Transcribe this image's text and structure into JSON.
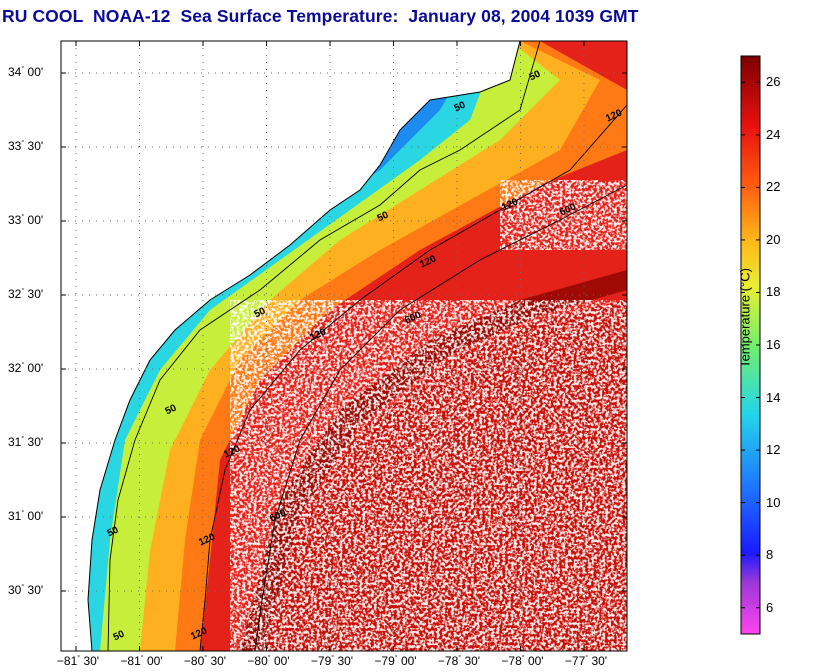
{
  "title": "RU COOL  NOAA-12  Sea Surface Temperature:  January 08, 2004 1039 GMT",
  "map": {
    "lat_labels": [
      {
        "deg": "34",
        "min": "00'",
        "lat": 34.0
      },
      {
        "deg": "33",
        "min": "30'",
        "lat": 33.5
      },
      {
        "deg": "33",
        "min": "00'",
        "lat": 33.0
      },
      {
        "deg": "32",
        "min": "30'",
        "lat": 32.5
      },
      {
        "deg": "32",
        "min": "00'",
        "lat": 32.0
      },
      {
        "deg": "31",
        "min": "30'",
        "lat": 31.5
      },
      {
        "deg": "31",
        "min": "00'",
        "lat": 31.0
      },
      {
        "deg": "30",
        "min": "30'",
        "lat": 30.5
      }
    ],
    "lon_labels": [
      {
        "deg": "−81",
        "min": "30'",
        "lon": -81.5
      },
      {
        "deg": "−81",
        "min": "00'",
        "lon": -81.0
      },
      {
        "deg": "−80",
        "min": "30'",
        "lon": -80.5
      },
      {
        "deg": "−80",
        "min": "00'",
        "lon": -80.0
      },
      {
        "deg": "−79",
        "min": "30'",
        "lon": -79.5
      },
      {
        "deg": "−79",
        "min": "00'",
        "lon": -79.0
      },
      {
        "deg": "−78",
        "min": "30'",
        "lon": -78.5
      },
      {
        "deg": "−78",
        "min": "00'",
        "lon": -78.0
      },
      {
        "deg": "−77",
        "min": "30'",
        "lon": -77.5
      }
    ],
    "contour_labels": [
      "50",
      "120",
      "600"
    ],
    "colors": {
      "land": "#ffffff",
      "coastline": "#000000",
      "grid": "#555555"
    }
  },
  "colorbar": {
    "label": "Temperature (°C)",
    "ticks": [
      "26",
      "24",
      "22",
      "20",
      "18",
      "16",
      "14",
      "12",
      "10",
      "8",
      "6"
    ],
    "range": [
      5,
      27
    ]
  }
}
